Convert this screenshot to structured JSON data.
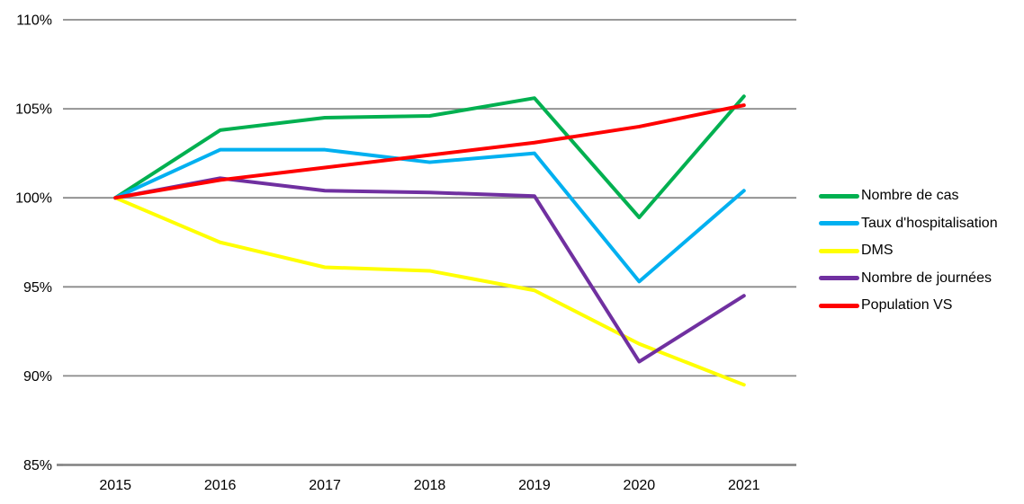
{
  "page": {
    "background_color": "#FFFFFF",
    "text_color": "#000000"
  },
  "chart_data": {
    "type": "line",
    "title": "",
    "xlabel": "",
    "ylabel": "",
    "x": [
      "2015",
      "2016",
      "2017",
      "2018",
      "2019",
      "2020",
      "2021"
    ],
    "series": [
      {
        "name": "Nombre de cas",
        "color": "#00B050",
        "values": [
          100,
          103.8,
          104.5,
          104.6,
          105.6,
          98.9,
          105.7
        ]
      },
      {
        "name": "Taux d'hospitalisation",
        "color": "#00B0F0",
        "values": [
          100,
          102.7,
          102.7,
          102.0,
          102.5,
          95.3,
          100.4
        ]
      },
      {
        "name": "DMS",
        "color": "#FFFF00",
        "values": [
          100,
          97.5,
          96.1,
          95.9,
          94.8,
          91.8,
          89.5
        ]
      },
      {
        "name": "Nombre de journées",
        "color": "#7030A0",
        "values": [
          100,
          101.1,
          100.4,
          100.3,
          100.1,
          90.8,
          94.5
        ]
      },
      {
        "name": "Population VS",
        "color": "#FF0000",
        "values": [
          100,
          101.0,
          101.7,
          102.4,
          103.1,
          104.0,
          105.2
        ]
      }
    ],
    "ylim": [
      85,
      110
    ],
    "ytick_step": 5,
    "ytick_labels": [
      "85%",
      "90%",
      "95%",
      "100%",
      "105%",
      "110%"
    ],
    "grid": true,
    "grid_color": "#8A8A8A",
    "axis_line_color": "#808080",
    "tick_label_color": "#000000",
    "legend_position": "right"
  }
}
